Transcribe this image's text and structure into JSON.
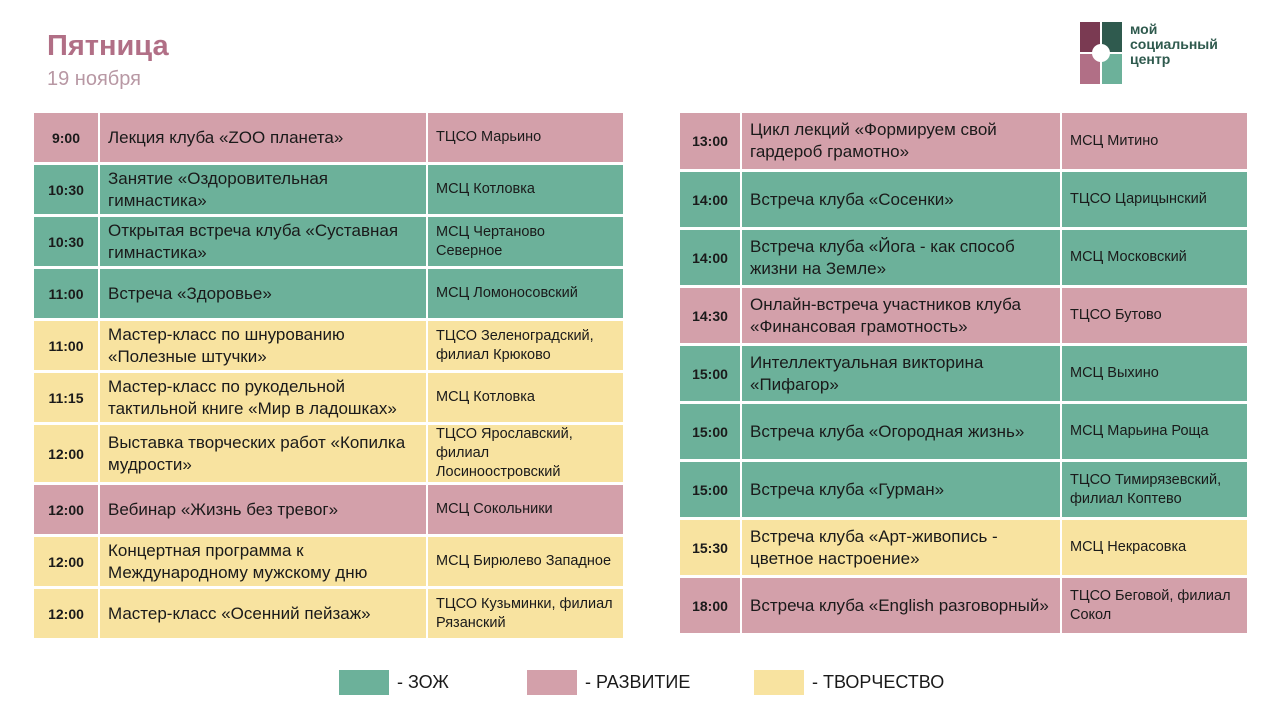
{
  "header": {
    "title": "Пятница",
    "date": "19 ноября"
  },
  "logo": {
    "line1": "мой",
    "line2": "социальный",
    "line3": "центр"
  },
  "colors": {
    "zozh": "#6cb19a",
    "razvitie": "#d3a0aa",
    "tvorchestvo": "#f8e3a0",
    "title": "#b16f86"
  },
  "left_rows": [
    {
      "time": "9:00",
      "event": "Лекция клуба «ZOO планета»",
      "place": "ТЦСО Марьино",
      "cat": "razv"
    },
    {
      "time": "10:30",
      "event": "Занятие «Оздоровительная гимнастика»",
      "place": "МСЦ Котловка",
      "cat": "zozh"
    },
    {
      "time": "10:30",
      "event": "Открытая встреча клуба «Суставная гимнастика»",
      "place": "МСЦ Чертаново Северное",
      "cat": "zozh"
    },
    {
      "time": "11:00",
      "event": "Встреча «Здоровье»",
      "place": "МСЦ Ломоносовский",
      "cat": "zozh"
    },
    {
      "time": "11:00",
      "event": "Мастер-класс по шнурованию «Полезные штучки»",
      "place": "ТЦСО Зеленоградский, филиал Крюково",
      "cat": "tvor"
    },
    {
      "time": "11:15",
      "event": "Мастер-класс по рукодельной тактильной книге «Мир в ладошках»",
      "place": "МСЦ Котловка",
      "cat": "tvor"
    },
    {
      "time": "12:00",
      "event": "Выставка творческих работ «Копилка мудрости»",
      "place": "ТЦСО Ярославский, филиал Лосиноостровский",
      "cat": "tvor"
    },
    {
      "time": "12:00",
      "event": "Вебинар «Жизнь без тревог»",
      "place": "МСЦ Сокольники",
      "cat": "razv"
    },
    {
      "time": "12:00",
      "event": "Концертная программа к Международному мужскому дню",
      "place": "МСЦ Бирюлево Западное",
      "cat": "tvor"
    },
    {
      "time": "12:00",
      "event": "Мастер-класс «Осенний пейзаж»",
      "place": "ТЦСО Кузьминки, филиал Рязанский",
      "cat": "tvor"
    }
  ],
  "right_rows": [
    {
      "time": "13:00",
      "event": "Цикл лекций «Формируем свой гардероб грамотно»",
      "place": "МСЦ Митино",
      "cat": "razv"
    },
    {
      "time": "14:00",
      "event": "Встреча клуба «Сосенки»",
      "place": "ТЦСО Царицынский",
      "cat": "zozh"
    },
    {
      "time": "14:00",
      "event": "Встреча клуба «Йога - как способ жизни на Земле»",
      "place": "МСЦ Московский",
      "cat": "zozh"
    },
    {
      "time": "14:30",
      "event": "Онлайн-встреча участников клуба «Финансовая грамотность»",
      "place": "ТЦСО Бутово",
      "cat": "razv"
    },
    {
      "time": "15:00",
      "event": "Интеллектуальная викторина «Пифагор»",
      "place": "МСЦ Выхино",
      "cat": "zozh"
    },
    {
      "time": "15:00",
      "event": "Встреча клуба «Огородная жизнь»",
      "place": "МСЦ Марьина Роща",
      "cat": "zozh"
    },
    {
      "time": "15:00",
      "event": "Встреча клуба «Гурман»",
      "place": "ТЦСО Тимирязевский, филиал Коптево",
      "cat": "zozh"
    },
    {
      "time": "15:30",
      "event": "Встреча клуба «Арт-живопись - цветное настроение»",
      "place": "МСЦ Некрасовка",
      "cat": "tvor"
    },
    {
      "time": "18:00",
      "event": "Встреча клуба «English разговорный»",
      "place": "ТЦСО Беговой, филиал Сокол",
      "cat": "razv"
    }
  ],
  "legend": [
    {
      "label": "- ЗОЖ",
      "cat": "zozh"
    },
    {
      "label": "- РАЗВИТИЕ",
      "cat": "razv"
    },
    {
      "label": "- ТВОРЧЕСТВО",
      "cat": "tvor"
    }
  ]
}
